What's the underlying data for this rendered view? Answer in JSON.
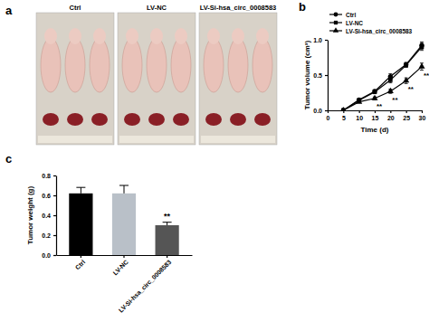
{
  "photo_panel": {
    "label": "a",
    "groups": [
      "Ctrl",
      "LV-NC",
      "LV-Si-hsa_circ_0008583"
    ]
  },
  "chart_data": [
    {
      "type": "line",
      "title": "b",
      "x_label": "Time (d)",
      "y_label": "Tumor volume (cm³)",
      "x": [
        5,
        10,
        15,
        20,
        25,
        30
      ],
      "series": [
        {
          "name": "Ctrl",
          "color": "#000000",
          "marker": "circle",
          "values": [
            0,
            0.15,
            0.27,
            0.48,
            0.65,
            0.92
          ],
          "errors": [
            0,
            0.01,
            0.02,
            0.04,
            0.03,
            0.05
          ]
        },
        {
          "name": "LV-NC",
          "color": "#000000",
          "marker": "square",
          "values": [
            0,
            0.14,
            0.26,
            0.43,
            0.64,
            0.9
          ],
          "errors": [
            0,
            0.01,
            0.02,
            0.04,
            0.03,
            0.05
          ]
        },
        {
          "name": "LV-Si-hsa_circ_0008583",
          "color": "#000000",
          "marker": "triangle",
          "values": [
            0,
            0.12,
            0.17,
            0.27,
            0.42,
            0.62
          ],
          "errors": [
            0,
            0.01,
            0.02,
            0.03,
            0.04,
            0.05
          ]
        }
      ],
      "xlim": [
        0,
        30
      ],
      "xticks": [
        0,
        5,
        10,
        15,
        20,
        25,
        30
      ],
      "ylim": [
        0,
        1.0
      ],
      "yticks": [
        {
          "value": 0,
          "label": "0.0"
        },
        {
          "value": 0.5,
          "label": "0.5"
        },
        {
          "value": 1.0,
          "label": "1.0"
        }
      ],
      "legend": "upper left",
      "annotations": [
        {
          "x": 15,
          "y": 0.09,
          "text": "**"
        },
        {
          "x": 20,
          "y": 0.18,
          "text": "**"
        },
        {
          "x": 25,
          "y": 0.33,
          "text": "**"
        },
        {
          "x": 30,
          "y": 0.52,
          "text": "**"
        }
      ]
    },
    {
      "type": "bar",
      "title": "c",
      "y_label": "Tumor weight (g)",
      "categories": [
        "Ctrl",
        "LV-NC",
        "LV-Si-hsa_circ_0008583"
      ],
      "values": [
        0.62,
        0.62,
        0.3
      ],
      "errors": [
        0.06,
        0.08,
        0.03
      ],
      "colors": [
        "#000000",
        "#b9c0c8",
        "#555555"
      ],
      "ylim": [
        0,
        0.8
      ],
      "yticks": [
        {
          "value": 0,
          "label": "0.0"
        },
        {
          "value": 0.2,
          "label": "0.2"
        },
        {
          "value": 0.4,
          "label": "0.4"
        },
        {
          "value": 0.6,
          "label": "0.6"
        },
        {
          "value": 0.8,
          "label": "0.8"
        }
      ],
      "annotations": [
        {
          "x": "LV-Si-hsa_circ_0008583",
          "y": 0.36,
          "text": "**"
        }
      ]
    }
  ]
}
